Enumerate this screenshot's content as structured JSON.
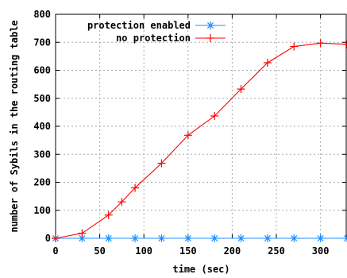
{
  "chart_data": {
    "type": "line",
    "title": "",
    "xlabel": "time (sec)",
    "ylabel": "number of Sybils in the routing table",
    "xlim": [
      0,
      330
    ],
    "ylim": [
      0,
      800
    ],
    "xticks": [
      "0",
      "50",
      "100",
      "150",
      "200",
      "250",
      "300"
    ],
    "yticks": [
      "0",
      "100",
      "200",
      "300",
      "400",
      "500",
      "600",
      "700",
      "800"
    ],
    "grid": true,
    "legend_position": "top-right",
    "series": [
      {
        "name": "protection enabled",
        "color": "#1e90ff",
        "marker": "asterisk",
        "x": [
          0,
          30,
          60,
          90,
          120,
          150,
          180,
          210,
          240,
          270,
          300,
          330
        ],
        "y": [
          0,
          0,
          0,
          0,
          0,
          0,
          0,
          0,
          0,
          0,
          0,
          0
        ]
      },
      {
        "name": "no protection",
        "color": "#ff0000",
        "marker": "plus",
        "x": [
          0,
          30,
          60,
          75,
          90,
          120,
          150,
          180,
          210,
          240,
          270,
          300,
          330
        ],
        "y": [
          0,
          18,
          83,
          130,
          180,
          268,
          368,
          437,
          533,
          627,
          685,
          697,
          693
        ]
      }
    ]
  }
}
